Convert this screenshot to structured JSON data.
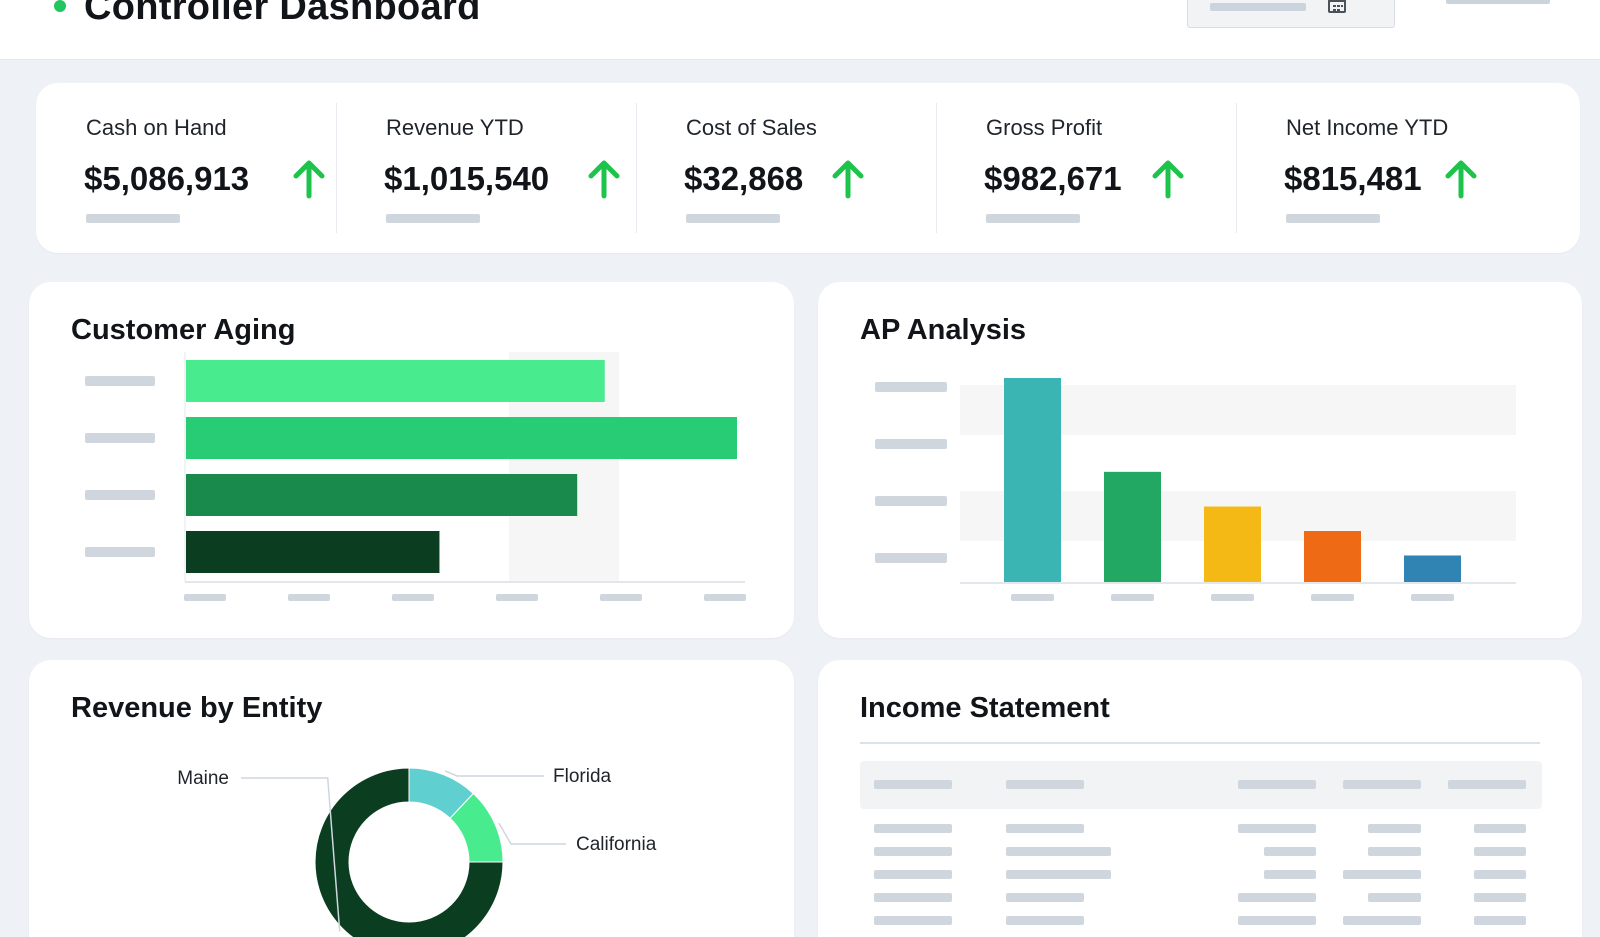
{
  "header": {
    "title": "Controller Dashboard",
    "status_color": "#22c55e",
    "date_picker_icon": "calendar-icon"
  },
  "kpis": [
    {
      "label": "Cash on Hand",
      "value": "$5,086,913",
      "trend": "up"
    },
    {
      "label": "Revenue YTD",
      "value": "$1,015,540",
      "trend": "up"
    },
    {
      "label": "Cost of Sales",
      "value": "$32,868",
      "trend": "up"
    },
    {
      "label": "Gross Profit",
      "value": "$982,671",
      "trend": "up"
    },
    {
      "label": "Net Income YTD",
      "value": "$815,481",
      "trend": "up"
    }
  ],
  "colors": {
    "trend_up": "#1dc34a",
    "placeholder": "#cfd6de"
  },
  "customer_aging": {
    "title": "Customer Aging",
    "chart_data": {
      "type": "bar",
      "orientation": "horizontal",
      "values": [
        76,
        100,
        71,
        46
      ],
      "xlim": [
        0,
        100
      ],
      "colors": [
        "#48ec8f",
        "#27cc74",
        "#1a8a4c",
        "#0b3d21"
      ],
      "grid": true
    }
  },
  "ap_analysis": {
    "title": "AP Analysis",
    "chart_data": {
      "type": "bar",
      "values": [
        100,
        54,
        37,
        25,
        13
      ],
      "ylim": [
        0,
        100
      ],
      "colors": [
        "#3bb4b4",
        "#22a862",
        "#f4b914",
        "#ee6a14",
        "#2f84b4"
      ],
      "grid": true
    }
  },
  "revenue_by_entity": {
    "title": "Revenue by Entity",
    "chart_data": {
      "type": "pie",
      "variant": "donut",
      "labels": [
        "Florida",
        "California",
        "Maine"
      ],
      "values": [
        12,
        13,
        75
      ],
      "colors": [
        "#5fcfcf",
        "#48ec8f",
        "#0b3d21"
      ]
    }
  },
  "income_statement": {
    "title": "Income Statement"
  }
}
